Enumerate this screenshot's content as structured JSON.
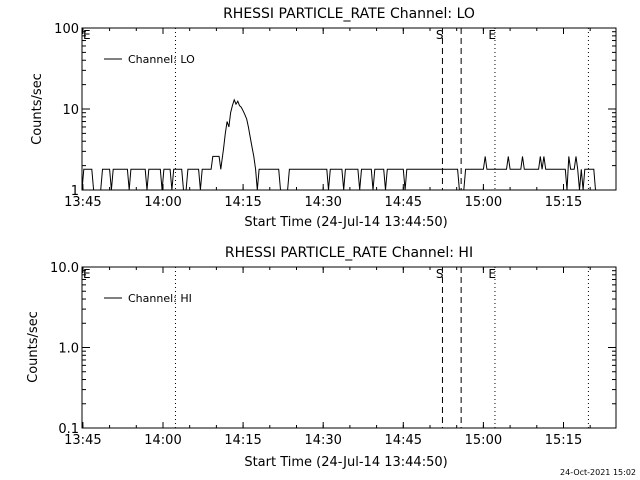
{
  "plot_date": "24-Oct-2021 15:02",
  "chart_data": [
    {
      "type": "line",
      "title": "RHESSI PARTICLE_RATE Channel: LO",
      "xlabel": "Start Time (24-Jul-14 13:44:50)",
      "ylabel": "Counts/sec",
      "xlim": [
        "13:44:50",
        "15:24:50"
      ],
      "x_ticks": [
        "13:45",
        "14:00",
        "14:15",
        "14:30",
        "14:45",
        "15:00",
        "15:15"
      ],
      "y_scale": "log",
      "ylim": [
        1,
        100
      ],
      "y_ticks": [
        "1",
        "10",
        "100"
      ],
      "legend": {
        "label": "Channel: LO",
        "placement": "top-left"
      },
      "markers": [
        {
          "type": "dotted",
          "time": "14:02:20"
        },
        {
          "type": "dashed",
          "time": "14:52:20",
          "label": "S"
        },
        {
          "type": "dashed",
          "time": "14:55:50"
        },
        {
          "type": "dotted",
          "time": "15:02:10",
          "label": "E"
        },
        {
          "type": "dotted",
          "time": "15:19:40"
        }
      ],
      "edge_labels": [
        {
          "label": "E",
          "position": "left"
        }
      ],
      "series": [
        {
          "name": "Channel: LO",
          "points": [
            [
              "13:44:50",
              1.0
            ],
            [
              "13:45:10",
              1.8
            ],
            [
              "13:46:40",
              1.8
            ],
            [
              "13:47:00",
              1.0
            ],
            [
              "13:48:20",
              1.0
            ],
            [
              "13:48:40",
              1.8
            ],
            [
              "13:50:00",
              1.8
            ],
            [
              "13:50:20",
              1.0
            ],
            [
              "13:50:40",
              1.8
            ],
            [
              "13:53:20",
              1.8
            ],
            [
              "13:53:40",
              1.0
            ],
            [
              "13:54:00",
              1.8
            ],
            [
              "13:56:40",
              1.8
            ],
            [
              "13:57:00",
              1.0
            ],
            [
              "13:57:20",
              1.8
            ],
            [
              "13:59:30",
              1.8
            ],
            [
              "13:59:50",
              1.0
            ],
            [
              "14:00:10",
              1.8
            ],
            [
              "14:01:20",
              1.8
            ],
            [
              "14:01:40",
              1.0
            ],
            [
              "14:02:00",
              1.8
            ],
            [
              "14:03:30",
              1.8
            ],
            [
              "14:03:50",
              1.0
            ],
            [
              "14:04:20",
              1.0
            ],
            [
              "14:04:40",
              1.8
            ],
            [
              "14:06:40",
              1.8
            ],
            [
              "14:07:00",
              1.0
            ],
            [
              "14:07:20",
              1.8
            ],
            [
              "14:09:00",
              1.8
            ],
            [
              "14:09:20",
              2.6
            ],
            [
              "14:10:30",
              2.6
            ],
            [
              "14:10:50",
              1.8
            ],
            [
              "14:11:00",
              2.2
            ],
            [
              "14:11:20",
              3.2
            ],
            [
              "14:11:40",
              5.0
            ],
            [
              "14:12:00",
              7.0
            ],
            [
              "14:12:20",
              6.0
            ],
            [
              "14:12:40",
              9.0
            ],
            [
              "14:13:00",
              11.0
            ],
            [
              "14:13:20",
              13.0
            ],
            [
              "14:13:40",
              11.5
            ],
            [
              "14:14:00",
              12.5
            ],
            [
              "14:14:20",
              11.0
            ],
            [
              "14:14:40",
              10.5
            ],
            [
              "14:15:00",
              9.5
            ],
            [
              "14:15:20",
              8.5
            ],
            [
              "14:15:40",
              7.5
            ],
            [
              "14:16:00",
              6.0
            ],
            [
              "14:16:20",
              4.5
            ],
            [
              "14:16:40",
              3.4
            ],
            [
              "14:17:00",
              2.6
            ],
            [
              "14:17:20",
              1.8
            ],
            [
              "14:17:40",
              1.0
            ],
            [
              "14:18:00",
              1.8
            ],
            [
              "14:21:40",
              1.8
            ],
            [
              "14:22:00",
              1.0
            ],
            [
              "14:23:20",
              1.0
            ],
            [
              "14:23:40",
              1.8
            ],
            [
              "14:30:40",
              1.8
            ],
            [
              "14:31:00",
              1.0
            ],
            [
              "14:31:20",
              1.8
            ],
            [
              "14:33:30",
              1.8
            ],
            [
              "14:33:50",
              1.0
            ],
            [
              "14:34:10",
              1.8
            ],
            [
              "14:36:30",
              1.8
            ],
            [
              "14:36:50",
              1.0
            ],
            [
              "14:37:10",
              1.8
            ],
            [
              "14:39:00",
              1.8
            ],
            [
              "14:39:20",
              1.0
            ],
            [
              "14:39:40",
              1.8
            ],
            [
              "14:41:20",
              1.8
            ],
            [
              "14:41:40",
              1.0
            ],
            [
              "14:42:00",
              1.8
            ],
            [
              "14:45:00",
              1.8
            ],
            [
              "14:45:20",
              1.0
            ],
            [
              "14:45:40",
              1.8
            ],
            [
              "14:55:10",
              1.8
            ],
            [
              "14:55:30",
              1.0
            ],
            [
              "14:56:20",
              1.0
            ],
            [
              "14:56:40",
              1.8
            ],
            [
              "15:00:00",
              1.8
            ],
            [
              "15:00:20",
              2.6
            ],
            [
              "15:00:40",
              1.8
            ],
            [
              "15:04:20",
              1.8
            ],
            [
              "15:04:40",
              2.6
            ],
            [
              "15:05:00",
              1.8
            ],
            [
              "15:07:00",
              1.8
            ],
            [
              "15:07:20",
              2.6
            ],
            [
              "15:07:40",
              1.8
            ],
            [
              "15:10:20",
              1.8
            ],
            [
              "15:10:40",
              2.6
            ],
            [
              "15:11:00",
              1.8
            ],
            [
              "15:11:20",
              2.6
            ],
            [
              "15:11:40",
              1.8
            ],
            [
              "15:15:20",
              1.8
            ],
            [
              "15:15:40",
              1.0
            ],
            [
              "15:16:00",
              2.6
            ],
            [
              "15:16:20",
              1.8
            ],
            [
              "15:17:00",
              1.8
            ],
            [
              "15:17:20",
              2.6
            ],
            [
              "15:17:40",
              1.8
            ],
            [
              "15:18:00",
              1.0
            ],
            [
              "15:18:20",
              1.8
            ],
            [
              "15:18:40",
              1.0
            ],
            [
              "15:19:00",
              1.8
            ],
            [
              "15:20:40",
              1.8
            ],
            [
              "15:21:00",
              1.0
            ],
            [
              "15:24:50",
              1.0
            ]
          ]
        }
      ]
    },
    {
      "type": "line",
      "title": "RHESSI PARTICLE_RATE Channel: HI",
      "xlabel": "Start Time (24-Jul-14 13:44:50)",
      "ylabel": "Counts/sec",
      "xlim": [
        "13:44:50",
        "15:24:50"
      ],
      "x_ticks": [
        "13:45",
        "14:00",
        "14:15",
        "14:30",
        "14:45",
        "15:00",
        "15:15"
      ],
      "y_scale": "log",
      "ylim": [
        0.1,
        10
      ],
      "y_ticks": [
        "0.1",
        "1.0",
        "10.0"
      ],
      "legend": {
        "label": "Channel: HI",
        "placement": "top-left"
      },
      "markers": [
        {
          "type": "dotted",
          "time": "14:02:20"
        },
        {
          "type": "dashed",
          "time": "14:52:20",
          "label": "S"
        },
        {
          "type": "dashed",
          "time": "14:55:50"
        },
        {
          "type": "dotted",
          "time": "15:02:10",
          "label": "E"
        },
        {
          "type": "dotted",
          "time": "15:19:40"
        }
      ],
      "edge_labels": [
        {
          "label": "E",
          "position": "left"
        }
      ],
      "series": [
        {
          "name": "Channel: HI",
          "points": []
        }
      ]
    }
  ]
}
